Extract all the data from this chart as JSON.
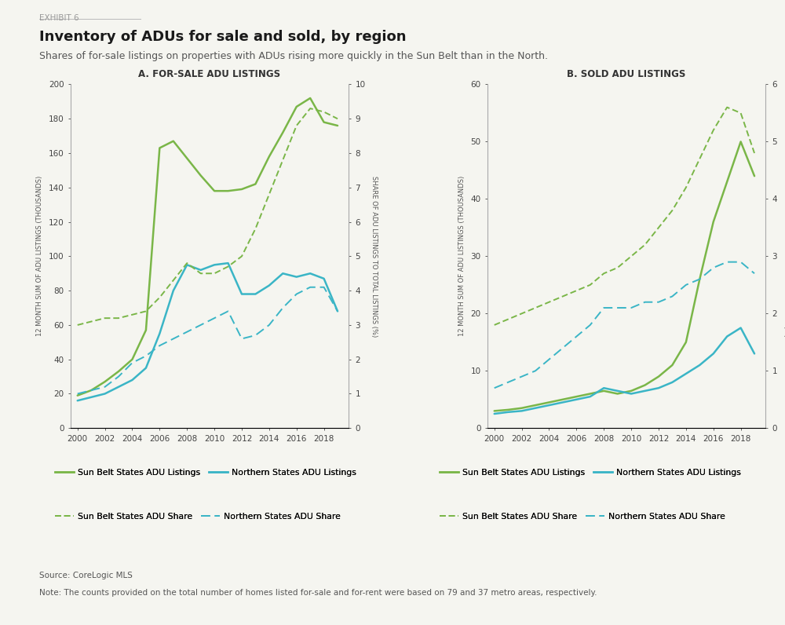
{
  "exhibit_label": "EXHIBIT 6",
  "title": "Inventory of ADUs for sale and sold, by region",
  "subtitle": "Shares of for-sale listings on properties with ADUs rising more quickly in the Sun Belt than in the North.",
  "source": "Source: CoreLogic MLS",
  "note": "Note: The counts provided on the total number of homes listed for-sale and for-rent were based on 79 and 37 metro areas, respectively.",
  "panel_a_title": "A. FOR-SALE ADU LISTINGS",
  "panel_b_title": "B. SOLD ADU LISTINGS",
  "years": [
    2000,
    2001,
    2002,
    2003,
    2004,
    2005,
    2006,
    2007,
    2008,
    2009,
    2010,
    2011,
    2012,
    2013,
    2014,
    2015,
    2016,
    2017,
    2018,
    2019
  ],
  "panel_a": {
    "sunbelt_listings": [
      19,
      22,
      27,
      33,
      40,
      57,
      163,
      167,
      157,
      147,
      138,
      138,
      139,
      142,
      158,
      172,
      187,
      192,
      178,
      176
    ],
    "northern_listings": [
      16,
      18,
      20,
      24,
      28,
      35,
      55,
      80,
      95,
      92,
      95,
      96,
      78,
      78,
      83,
      90,
      88,
      90,
      87,
      68
    ],
    "sunbelt_share": [
      3.0,
      3.1,
      3.2,
      3.2,
      3.3,
      3.4,
      3.8,
      4.3,
      4.8,
      4.5,
      4.5,
      4.7,
      5.0,
      5.8,
      6.8,
      7.8,
      8.8,
      9.3,
      9.2,
      9.0
    ],
    "northern_share": [
      1.0,
      1.1,
      1.2,
      1.5,
      1.9,
      2.1,
      2.4,
      2.6,
      2.8,
      3.0,
      3.2,
      3.4,
      2.6,
      2.7,
      3.0,
      3.5,
      3.9,
      4.1,
      4.1,
      3.4
    ],
    "left_ylim": [
      0,
      200
    ],
    "left_yticks": [
      0,
      20,
      40,
      60,
      80,
      100,
      120,
      140,
      160,
      180,
      200
    ],
    "right_ylim": [
      0,
      10
    ],
    "right_yticks": [
      0,
      1,
      2,
      3,
      4,
      5,
      6,
      7,
      8,
      9,
      10
    ],
    "left_ylabel": "12 MONTH SUM OF ADU LISTINGS (THOUSANDS)",
    "right_ylabel": "SHARE OF ADU LISTINGS TO TOTAL LISTINGS (%)"
  },
  "panel_b": {
    "sunbelt_listings": [
      3.0,
      3.2,
      3.5,
      4.0,
      4.5,
      5.0,
      5.5,
      6.0,
      6.5,
      6.0,
      6.5,
      7.5,
      9.0,
      11.0,
      15.0,
      26.0,
      36.0,
      43.0,
      50.0,
      44.0
    ],
    "northern_listings": [
      2.5,
      2.8,
      3.0,
      3.5,
      4.0,
      4.5,
      5.0,
      5.5,
      7.0,
      6.5,
      6.0,
      6.5,
      7.0,
      8.0,
      9.5,
      11.0,
      13.0,
      16.0,
      17.5,
      13.0
    ],
    "sunbelt_share": [
      1.8,
      1.9,
      2.0,
      2.1,
      2.2,
      2.3,
      2.4,
      2.5,
      2.7,
      2.8,
      3.0,
      3.2,
      3.5,
      3.8,
      4.2,
      4.7,
      5.2,
      5.6,
      5.5,
      4.8
    ],
    "northern_share": [
      0.7,
      0.8,
      0.9,
      1.0,
      1.2,
      1.4,
      1.6,
      1.8,
      2.1,
      2.1,
      2.1,
      2.2,
      2.2,
      2.3,
      2.5,
      2.6,
      2.8,
      2.9,
      2.9,
      2.7
    ],
    "left_ylim": [
      0,
      60
    ],
    "left_yticks": [
      0,
      10,
      20,
      30,
      40,
      50,
      60
    ],
    "right_ylim": [
      0,
      6
    ],
    "right_yticks": [
      0,
      1,
      2,
      3,
      4,
      5,
      6
    ],
    "left_ylabel": "12 MONTH SUM OF ADU LISTINGS (THOUSANDS)",
    "right_ylabel": "SHARE OF ADU LISTINGS TO TOTAL LISTINGS (%)"
  },
  "sunbelt_color": "#7ab648",
  "northern_color": "#3ab5c6",
  "legend_entries": [
    "Sun Belt States ADU Listings",
    "Northern States ADU Listings",
    "Sun Belt States ADU Share",
    "Northern States ADU Share"
  ],
  "background_color": "#f5f5f0",
  "xticks": [
    2000,
    2002,
    2004,
    2006,
    2008,
    2010,
    2012,
    2014,
    2016,
    2018
  ]
}
